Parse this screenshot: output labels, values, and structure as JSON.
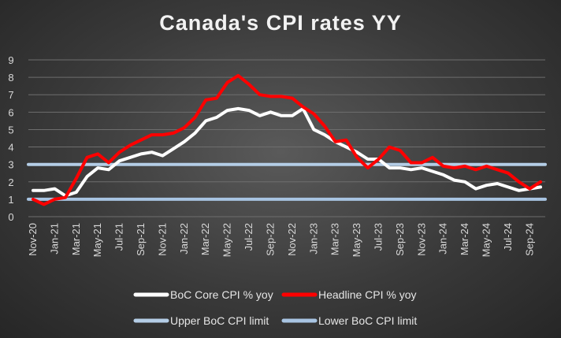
{
  "chart_data": {
    "type": "line",
    "title": "Canada's CPI rates YY",
    "xlabel": "",
    "ylabel": "",
    "ylim": [
      0,
      9
    ],
    "yticks": [
      "0",
      "1",
      "2",
      "3",
      "4",
      "5",
      "6",
      "7",
      "8",
      "9"
    ],
    "grid": true,
    "legend_position": "bottom",
    "x": [
      "Nov-20",
      "Dec-20",
      "Jan-21",
      "Feb-21",
      "Mar-21",
      "Apr-21",
      "May-21",
      "Jun-21",
      "Jul-21",
      "Aug-21",
      "Sep-21",
      "Oct-21",
      "Nov-21",
      "Dec-21",
      "Jan-22",
      "Feb-22",
      "Mar-22",
      "Apr-22",
      "May-22",
      "Jun-22",
      "Jul-22",
      "Aug-22",
      "Sep-22",
      "Oct-22",
      "Nov-22",
      "Dec-22",
      "Jan-23",
      "Feb-23",
      "Mar-23",
      "Apr-23",
      "May-23",
      "Jun-23",
      "Jul-23",
      "Aug-23",
      "Sep-23",
      "Oct-23",
      "Nov-23",
      "Dec-23",
      "Jan-24",
      "Feb-24",
      "Mar-24",
      "Apr-24",
      "May-24",
      "Jun-24",
      "Jul-24",
      "Aug-24",
      "Sep-24",
      "Oct-24"
    ],
    "x_tick_labels": [
      "Nov-20",
      "Jan-21",
      "Mar-21",
      "May-21",
      "Jul-21",
      "Sep-21",
      "Nov-21",
      "Jan-22",
      "Mar-22",
      "May-22",
      "Jul-22",
      "Sep-22",
      "Nov-22",
      "Jan-23",
      "Mar-23",
      "May-23",
      "Jul-23",
      "Sep-23",
      "Nov-23",
      "Jan-24",
      "Mar-24",
      "May-24",
      "Jul-24",
      "Sep-24"
    ],
    "series": [
      {
        "name": "BoC Core CPI % yoy",
        "color": "#ffffff",
        "values": [
          1.5,
          1.5,
          1.6,
          1.2,
          1.4,
          2.3,
          2.8,
          2.7,
          3.2,
          3.4,
          3.6,
          3.7,
          3.5,
          3.9,
          4.3,
          4.8,
          5.5,
          5.7,
          6.1,
          6.2,
          6.1,
          5.8,
          6.0,
          5.8,
          5.8,
          6.2,
          5.0,
          4.7,
          4.3,
          4.0,
          3.7,
          3.3,
          3.3,
          2.8,
          2.8,
          2.7,
          2.8,
          2.6,
          2.4,
          2.1,
          2.0,
          1.6,
          1.8,
          1.9,
          1.7,
          1.5,
          1.6,
          1.7
        ]
      },
      {
        "name": "Headline CPI % yoy",
        "color": "#ff0000",
        "values": [
          1.0,
          0.7,
          1.0,
          1.1,
          2.2,
          3.4,
          3.6,
          3.1,
          3.7,
          4.1,
          4.4,
          4.7,
          4.7,
          4.8,
          5.1,
          5.7,
          6.7,
          6.8,
          7.7,
          8.1,
          7.6,
          7.0,
          6.9,
          6.9,
          6.8,
          6.3,
          5.9,
          5.2,
          4.3,
          4.4,
          3.4,
          2.8,
          3.3,
          4.0,
          3.8,
          3.1,
          3.1,
          3.4,
          2.9,
          2.8,
          2.9,
          2.7,
          2.9,
          2.7,
          2.5,
          2.0,
          1.6,
          2.0
        ]
      },
      {
        "name": "Upper BoC CPI limit",
        "color": "#b4cde6",
        "values": [
          3,
          3,
          3,
          3,
          3,
          3,
          3,
          3,
          3,
          3,
          3,
          3,
          3,
          3,
          3,
          3,
          3,
          3,
          3,
          3,
          3,
          3,
          3,
          3,
          3,
          3,
          3,
          3,
          3,
          3,
          3,
          3,
          3,
          3,
          3,
          3,
          3,
          3,
          3,
          3,
          3,
          3,
          3,
          3,
          3,
          3,
          3,
          3
        ]
      },
      {
        "name": "Lower BoC CPI limit",
        "color": "#a8c4e2",
        "values": [
          1,
          1,
          1,
          1,
          1,
          1,
          1,
          1,
          1,
          1,
          1,
          1,
          1,
          1,
          1,
          1,
          1,
          1,
          1,
          1,
          1,
          1,
          1,
          1,
          1,
          1,
          1,
          1,
          1,
          1,
          1,
          1,
          1,
          1,
          1,
          1,
          1,
          1,
          1,
          1,
          1,
          1,
          1,
          1,
          1,
          1,
          1,
          1
        ]
      }
    ]
  }
}
